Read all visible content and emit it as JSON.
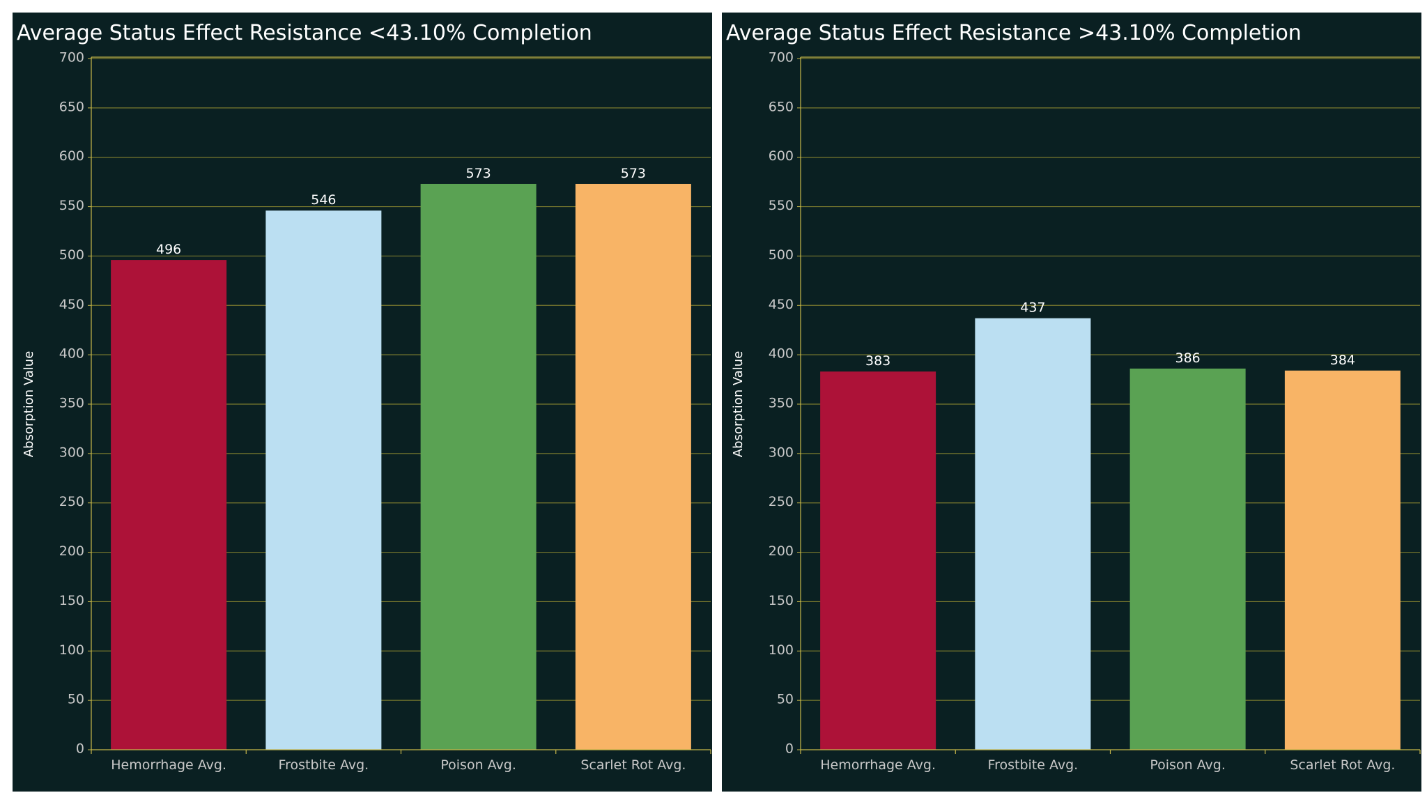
{
  "colors": {
    "background": "#0a2022",
    "grid": "#7a7a2e",
    "axis": "#c8b84a",
    "bars": [
      "#ad1238",
      "#bbdff2",
      "#5aa253",
      "#f8b466"
    ]
  },
  "chart_data": [
    {
      "type": "bar",
      "title": "Average Status Effect Resistance <43.10% Completion",
      "ylabel": "Absorption Value",
      "xlabel": "",
      "ylim": [
        0,
        700
      ],
      "yticks": [
        0,
        50,
        100,
        150,
        200,
        250,
        300,
        350,
        400,
        450,
        500,
        550,
        600,
        650,
        700
      ],
      "grid": true,
      "categories": [
        "Hemorrhage Avg.",
        "Frostbite Avg.",
        "Poison Avg.",
        "Scarlet Rot Avg."
      ],
      "values": [
        496,
        546,
        573,
        573
      ]
    },
    {
      "type": "bar",
      "title": "Average Status Effect Resistance >43.10% Completion",
      "ylabel": "Absorption Value",
      "xlabel": "",
      "ylim": [
        0,
        700
      ],
      "yticks": [
        0,
        50,
        100,
        150,
        200,
        250,
        300,
        350,
        400,
        450,
        500,
        550,
        600,
        650,
        700
      ],
      "grid": true,
      "categories": [
        "Hemorrhage Avg.",
        "Frostbite Avg.",
        "Poison Avg.",
        "Scarlet Rot Avg."
      ],
      "values": [
        383,
        437,
        386,
        384
      ]
    }
  ]
}
